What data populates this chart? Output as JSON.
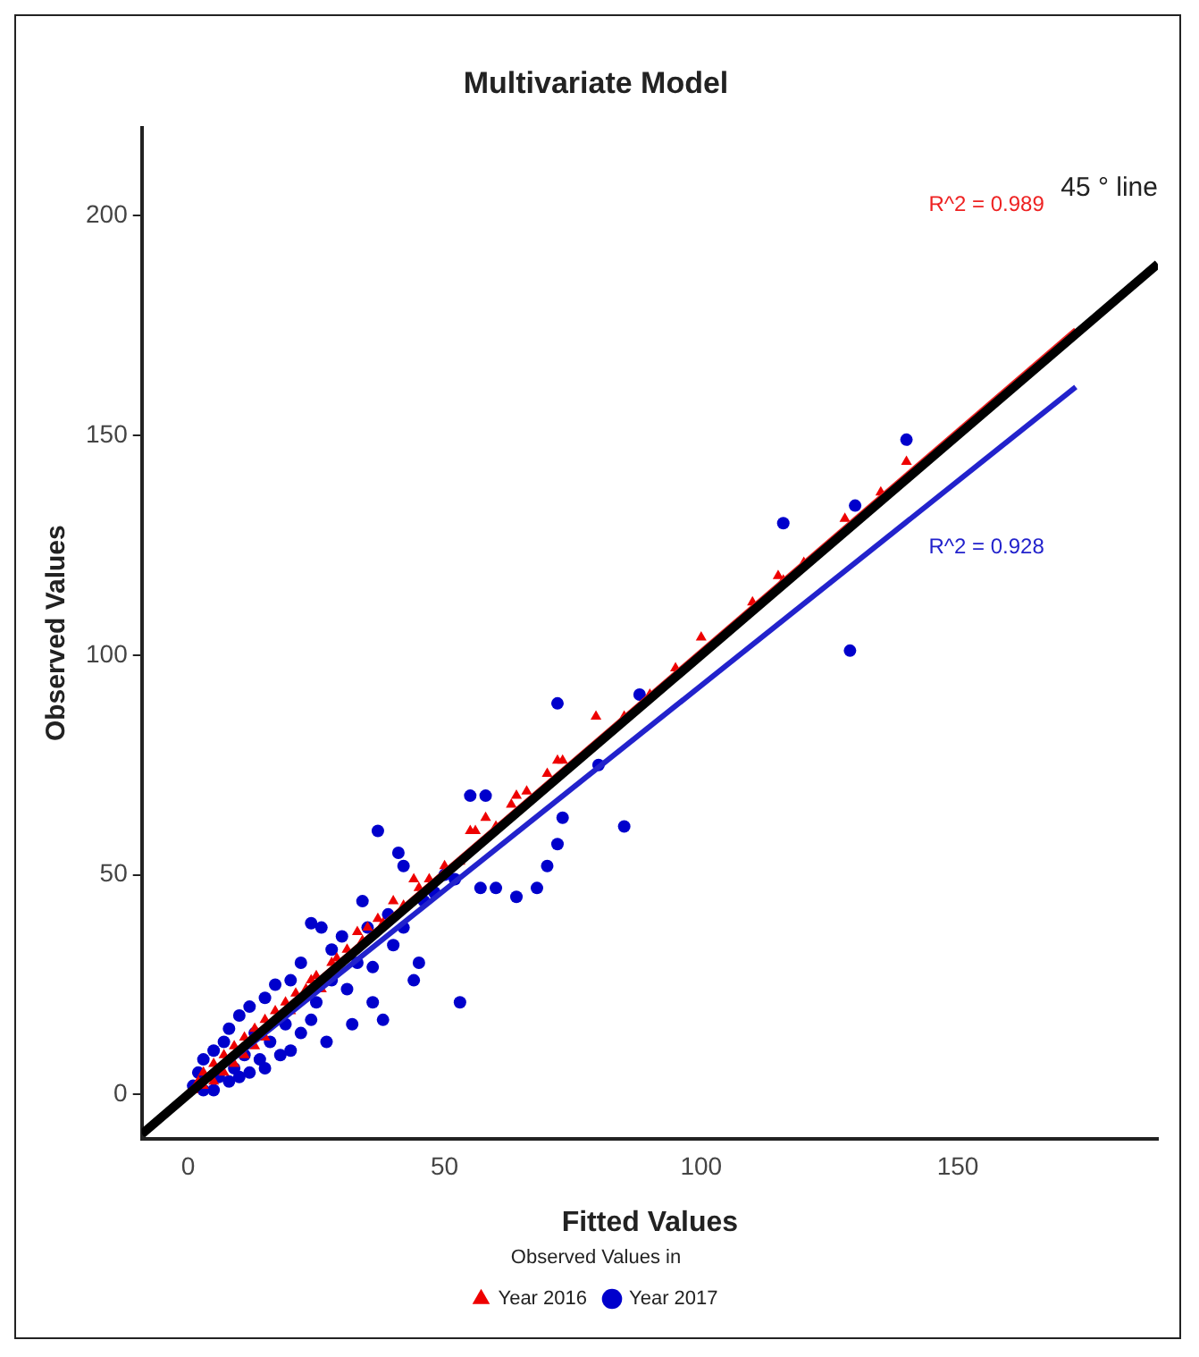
{
  "chart_data": {
    "type": "scatter",
    "title": "Multivariate Model",
    "xlabel": "Fitted Values",
    "ylabel": "Observed Values",
    "legend_title": "Observed Values in",
    "legend": "bottom",
    "grid": false,
    "xlim": [
      -9,
      189
    ],
    "xticks": [
      0,
      50,
      100,
      150
    ],
    "ylim": [
      -10,
      220
    ],
    "yticks": [
      0,
      50,
      100,
      150,
      200
    ],
    "series": [
      {
        "name": "Year 2016",
        "marker": "triangle",
        "color": "#ee0000",
        "x": [
          1,
          2,
          3,
          3,
          5,
          5,
          7,
          7,
          9,
          9,
          11,
          11,
          13,
          13,
          15,
          15,
          17,
          19,
          20,
          21,
          23,
          24,
          25,
          26,
          28,
          29,
          31,
          33,
          34,
          35,
          37,
          38,
          40,
          42,
          44,
          45,
          47,
          50,
          53,
          56,
          55,
          58,
          60,
          63,
          64,
          66,
          70,
          73,
          72,
          79.5,
          85,
          90,
          95,
          100,
          110,
          116,
          115,
          120,
          128,
          135,
          140
        ],
        "values": [
          1,
          3,
          2,
          5,
          7,
          3,
          9,
          5,
          11,
          7,
          13,
          9,
          15,
          11,
          17,
          13,
          19,
          21,
          19,
          23,
          24,
          26,
          27,
          24,
          30,
          31,
          33,
          37,
          35,
          38,
          40,
          39,
          44,
          43,
          49,
          47,
          49,
          52,
          53,
          60,
          60,
          63,
          61,
          66,
          68,
          69,
          73,
          76,
          76,
          86,
          86,
          91,
          97,
          104,
          112,
          117,
          118,
          121,
          131,
          137,
          144
        ]
      },
      {
        "name": "Year 2017",
        "marker": "circle",
        "color": "#0000cc",
        "x": [
          1,
          2,
          3,
          3,
          5,
          5,
          6,
          7,
          8,
          8,
          9,
          10,
          10,
          11,
          12,
          12,
          13,
          14,
          15,
          15,
          16,
          17,
          18,
          19,
          20,
          20,
          22,
          22,
          24,
          24,
          25,
          26,
          27,
          28,
          28,
          30,
          31,
          32,
          33,
          34,
          35,
          36,
          36,
          37,
          38,
          39,
          40,
          41,
          42,
          42,
          44,
          45,
          46,
          48,
          50,
          52,
          53,
          55,
          57,
          58,
          60,
          64,
          68,
          70,
          72,
          72,
          73,
          80,
          85,
          88,
          116,
          129,
          130,
          140
        ],
        "values": [
          2,
          5,
          1,
          8,
          10,
          1,
          4,
          12,
          3,
          15,
          6,
          18,
          4,
          9,
          20,
          5,
          14,
          8,
          22,
          6,
          12,
          25,
          9,
          16,
          26,
          10,
          14,
          30,
          17,
          39,
          21,
          38,
          12,
          33,
          26,
          36,
          24,
          16,
          30,
          44,
          38,
          29,
          21,
          60,
          17,
          41,
          34,
          55,
          38,
          52,
          26,
          30,
          44,
          46,
          50,
          49,
          21,
          68,
          47,
          68,
          47,
          45,
          47,
          52,
          57,
          89,
          63,
          75,
          61,
          91,
          130,
          101,
          134,
          149
        ]
      },
      {
        "name": "45 ° line",
        "type": "line",
        "color": "#000000",
        "x": [
          -9,
          189
        ],
        "values": [
          -9,
          189
        ]
      },
      {
        "name": "R^2 = 0.989",
        "type": "line",
        "color": "#ee2222",
        "x": [
          0,
          173
        ],
        "values": [
          0.5,
          174
        ]
      },
      {
        "name": "R^2 = 0.928",
        "type": "line",
        "color": "#2222cc",
        "x": [
          0,
          173
        ],
        "values": [
          0,
          161
        ]
      }
    ]
  }
}
